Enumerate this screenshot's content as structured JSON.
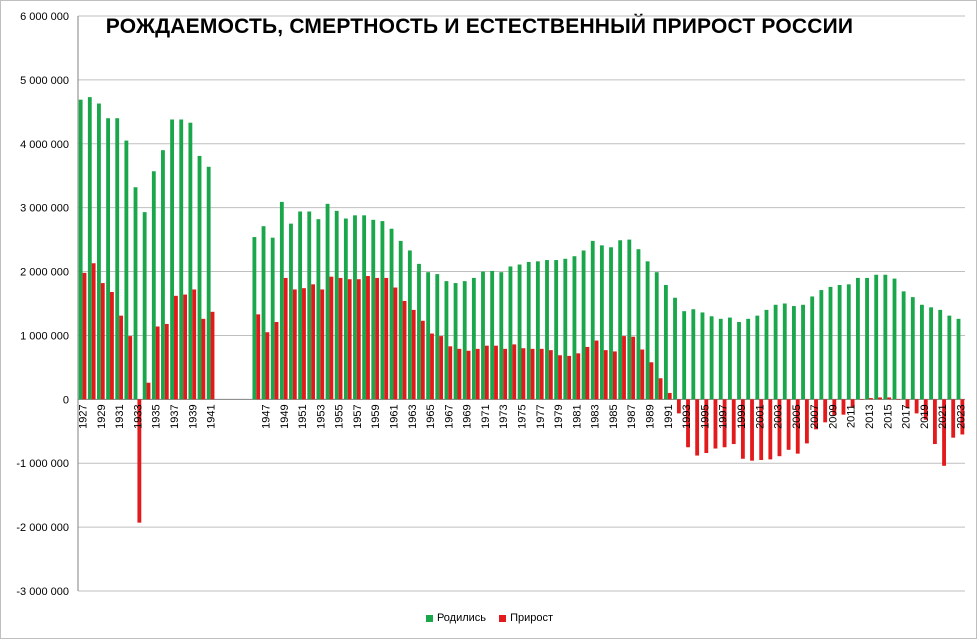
{
  "chart_data": {
    "type": "bar",
    "title": "РОЖДАЕМОСТЬ, СМЕРТНОСТЬ И ЕСТЕСТВЕННЫЙ ПРИРОСТ РОССИИ",
    "xlabel": "",
    "ylabel": "",
    "ylim": [
      -3000000,
      6000000
    ],
    "y_ticks": [
      6000000,
      5000000,
      4000000,
      3000000,
      2000000,
      1000000,
      0,
      -1000000,
      -2000000,
      -3000000
    ],
    "y_tick_labels": [
      "6 000 000",
      "5 000 000",
      "4 000 000",
      "3 000 000",
      "2 000 000",
      "1 000 000",
      "0",
      "-1 000 000",
      "-2 000 000",
      "-3 000 000"
    ],
    "grid": true,
    "legend": "bottom",
    "colors": {
      "born": "#1aa64b",
      "growth": "#e31a1c",
      "grid": "#bfbfbf"
    },
    "categories": [
      1927,
      1928,
      1929,
      1930,
      1931,
      1932,
      1933,
      1934,
      1935,
      1936,
      1937,
      1938,
      1939,
      1940,
      1941,
      1942,
      1943,
      1944,
      1945,
      1946,
      1947,
      1948,
      1949,
      1950,
      1951,
      1952,
      1953,
      1954,
      1955,
      1956,
      1957,
      1958,
      1959,
      1960,
      1961,
      1962,
      1963,
      1964,
      1965,
      1966,
      1967,
      1968,
      1969,
      1970,
      1971,
      1972,
      1973,
      1974,
      1975,
      1976,
      1977,
      1978,
      1979,
      1980,
      1981,
      1982,
      1983,
      1984,
      1985,
      1986,
      1987,
      1988,
      1989,
      1990,
      1991,
      1992,
      1993,
      1994,
      1995,
      1996,
      1997,
      1998,
      1999,
      2000,
      2001,
      2002,
      2003,
      2004,
      2005,
      2006,
      2007,
      2008,
      2009,
      2010,
      2011,
      2012,
      2013,
      2014,
      2015,
      2016,
      2017,
      2018,
      2019,
      2020,
      2021,
      2022,
      2023
    ],
    "x_tick_labels": [
      "1927",
      "1929",
      "1931",
      "1933",
      "1935",
      "1937",
      "1939",
      "1941",
      "1947",
      "1949",
      "1951",
      "1953",
      "1955",
      "1957",
      "1959",
      "1961",
      "1963",
      "1965",
      "1967",
      "1969",
      "1971",
      "1973",
      "1975",
      "1977",
      "1979",
      "1981",
      "1983",
      "1985",
      "1987",
      "1989",
      "1991",
      "1993",
      "1995",
      "1997",
      "1999",
      "2001",
      "2003",
      "2005",
      "2007",
      "2009",
      "2011",
      "2013",
      "2015",
      "2017",
      "2019",
      "2021",
      "2023"
    ],
    "series": [
      {
        "name": "Родились",
        "values": [
          4690000,
          4730000,
          4630000,
          4400000,
          4400000,
          4050000,
          3320000,
          2930000,
          3570000,
          3900000,
          4380000,
          4380000,
          4330000,
          3810000,
          3640000,
          null,
          null,
          null,
          null,
          2540000,
          2710000,
          2530000,
          3090000,
          2750000,
          2940000,
          2940000,
          2820000,
          3060000,
          2950000,
          2830000,
          2880000,
          2880000,
          2810000,
          2790000,
          2670000,
          2480000,
          2330000,
          2120000,
          1990000,
          1960000,
          1850000,
          1820000,
          1850000,
          1900000,
          2000000,
          2010000,
          1990000,
          2080000,
          2110000,
          2150000,
          2160000,
          2180000,
          2180000,
          2200000,
          2240000,
          2330000,
          2480000,
          2410000,
          2380000,
          2490000,
          2500000,
          2350000,
          2160000,
          1990000,
          1790000,
          1590000,
          1380000,
          1410000,
          1360000,
          1300000,
          1260000,
          1280000,
          1210000,
          1260000,
          1310000,
          1400000,
          1480000,
          1500000,
          1460000,
          1480000,
          1610000,
          1710000,
          1760000,
          1790000,
          1800000,
          1900000,
          1900000,
          1950000,
          1950000,
          1890000,
          1690000,
          1600000,
          1480000,
          1440000,
          1400000,
          1310000,
          1260000
        ]
      },
      {
        "name": "Прирост",
        "values": [
          1980000,
          2130000,
          1820000,
          1680000,
          1310000,
          990000,
          -1930000,
          260000,
          1140000,
          1180000,
          1620000,
          1640000,
          1720000,
          1260000,
          1370000,
          null,
          null,
          null,
          null,
          1330000,
          1050000,
          1210000,
          1900000,
          1720000,
          1740000,
          1800000,
          1720000,
          1920000,
          1900000,
          1880000,
          1880000,
          1930000,
          1900000,
          1900000,
          1750000,
          1540000,
          1400000,
          1230000,
          1030000,
          990000,
          830000,
          790000,
          760000,
          790000,
          840000,
          840000,
          790000,
          860000,
          800000,
          790000,
          790000,
          770000,
          690000,
          680000,
          720000,
          820000,
          920000,
          770000,
          750000,
          990000,
          980000,
          780000,
          580000,
          330000,
          100000,
          -220000,
          -750000,
          -880000,
          -840000,
          -770000,
          -750000,
          -700000,
          -930000,
          -960000,
          -950000,
          -940000,
          -890000,
          -790000,
          -850000,
          -690000,
          -470000,
          -360000,
          -250000,
          -240000,
          -130000,
          0,
          20000,
          30000,
          30000,
          -2000,
          -140000,
          -220000,
          -320000,
          -700000,
          -1040000,
          -600000,
          -550000
        ]
      }
    ]
  }
}
